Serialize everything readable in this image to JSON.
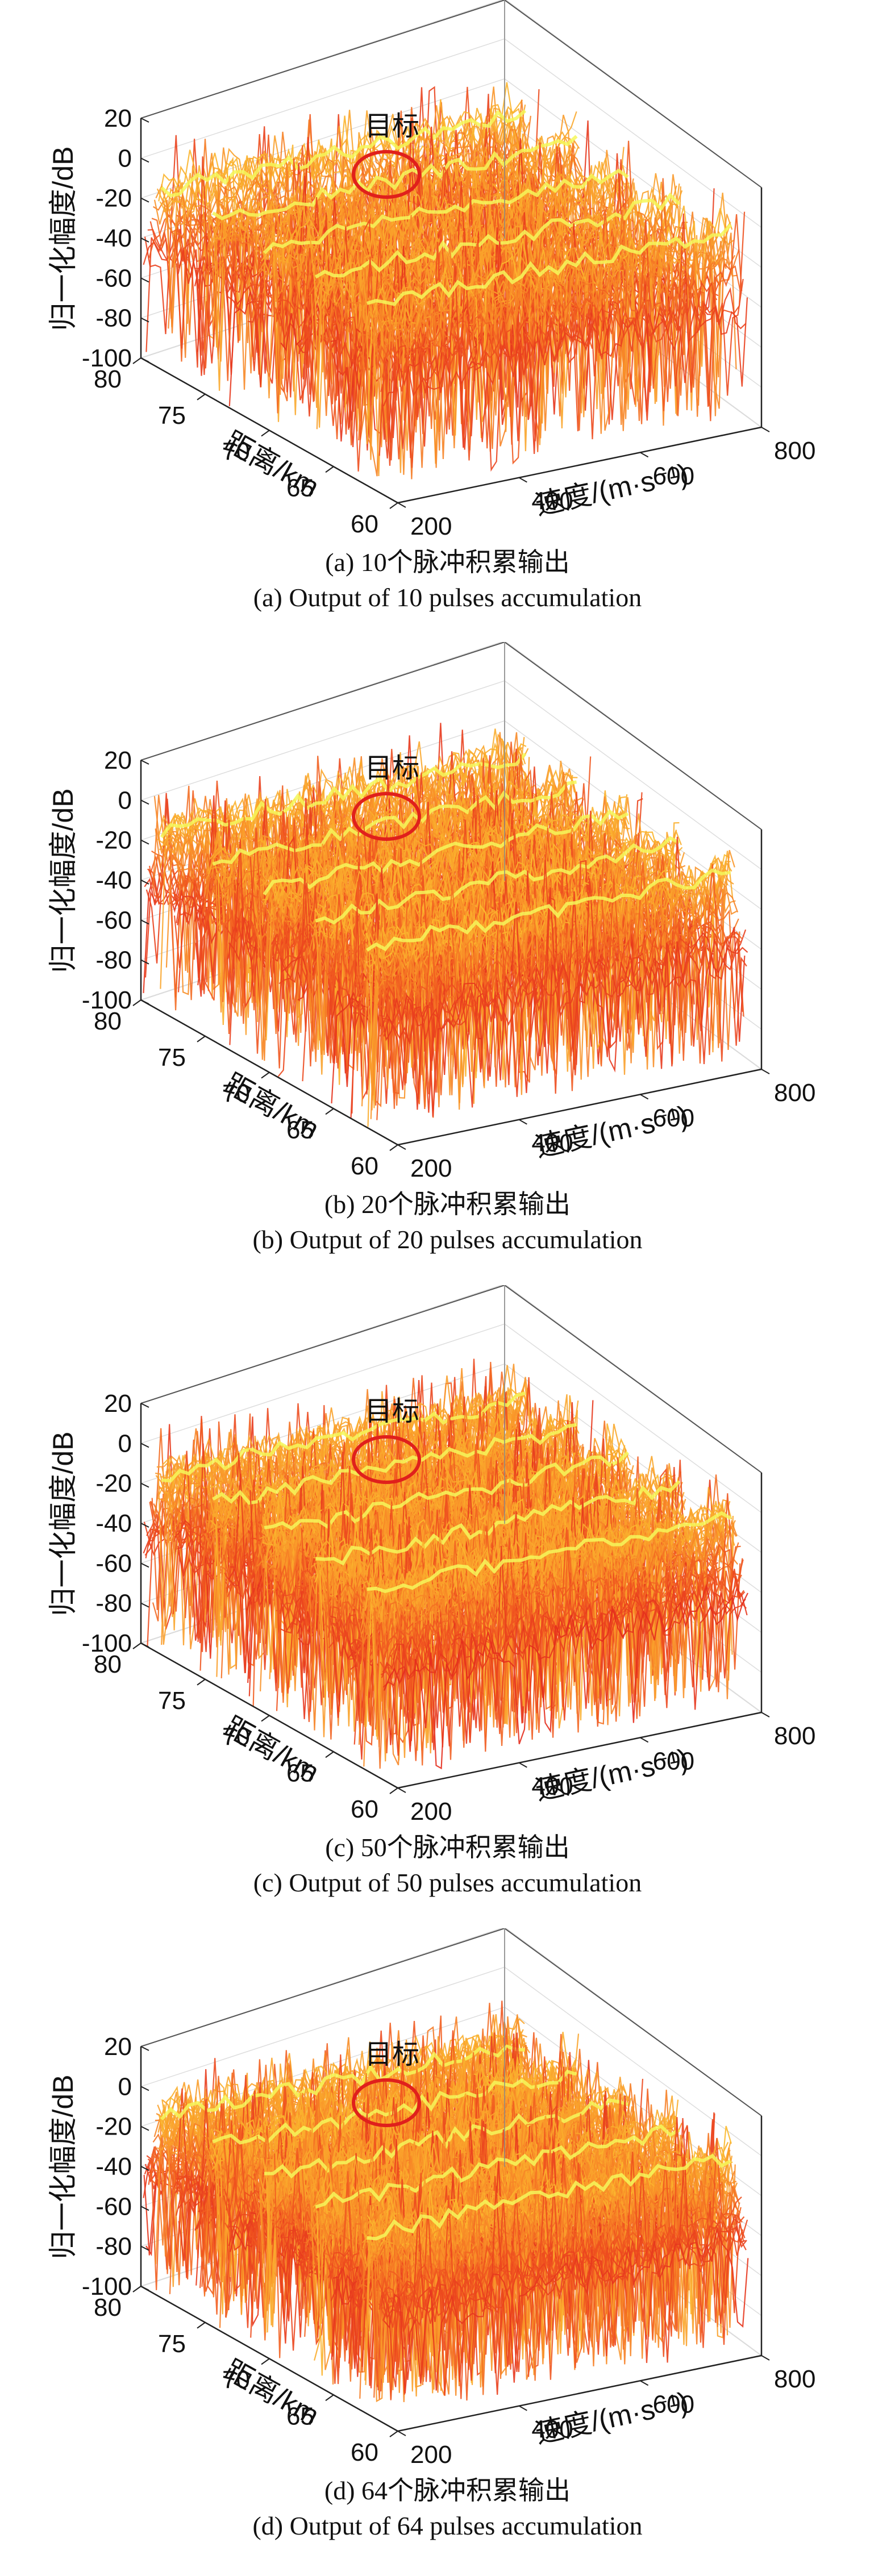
{
  "chart_data": [
    {
      "type": "surface",
      "panel_label": "(a)",
      "caption_cn": "(a) 10个脉冲积累输出",
      "caption_en": "(a) Output of 10 pulses accumulation",
      "annotation": "目标",
      "zlabel": "归一化幅度/dB",
      "xlabel": "距离/km",
      "ylabel": "速度/(m·s⁻¹)",
      "zlim": [
        -100,
        20
      ],
      "xlim": [
        60,
        80
      ],
      "ylim": [
        200,
        800
      ],
      "z_ticks": [
        "20",
        "0",
        "-20",
        "-40",
        "-60",
        "-80",
        "-100"
      ],
      "x_ticks": [
        "80",
        "75",
        "70",
        "65",
        "60"
      ],
      "y_ticks": [
        "200",
        "400",
        "600",
        "800"
      ],
      "grid": true,
      "colormap": [
        "#e0201c",
        "#f15a20",
        "#f99a2a",
        "#fdd431",
        "#f4f75a"
      ],
      "ridge_count": 5,
      "ridge_peak_db": 0,
      "noise_floor_db": -40,
      "deep_null_db": -100
    },
    {
      "type": "surface",
      "panel_label": "(b)",
      "caption_cn": "(b) 20个脉冲积累输出",
      "caption_en": "(b) Output of 20 pulses accumulation",
      "annotation": "目标",
      "zlabel": "归一化幅度/dB",
      "xlabel": "距离/km",
      "ylabel": "速度/(m·s⁻¹)",
      "zlim": [
        -100,
        20
      ],
      "xlim": [
        60,
        80
      ],
      "ylim": [
        200,
        800
      ],
      "z_ticks": [
        "20",
        "0",
        "-20",
        "-40",
        "-60",
        "-80",
        "-100"
      ],
      "x_ticks": [
        "80",
        "75",
        "70",
        "65",
        "60"
      ],
      "y_ticks": [
        "200",
        "400",
        "600",
        "800"
      ],
      "grid": true,
      "colormap": [
        "#e0201c",
        "#f15a20",
        "#f99a2a",
        "#fdd431",
        "#f4f75a"
      ],
      "ridge_count": 5,
      "ridge_peak_db": 0,
      "noise_floor_db": -40,
      "deep_null_db": -100
    },
    {
      "type": "surface",
      "panel_label": "(c)",
      "caption_cn": "(c) 50个脉冲积累输出",
      "caption_en": "(c) Output of 50 pulses accumulation",
      "annotation": "目标",
      "zlabel": "归一化幅度/dB",
      "xlabel": "距离/km",
      "ylabel": "速度/(m·s⁻¹)",
      "zlim": [
        -100,
        20
      ],
      "xlim": [
        60,
        80
      ],
      "ylim": [
        200,
        800
      ],
      "z_ticks": [
        "20",
        "0",
        "-20",
        "-40",
        "-60",
        "-80",
        "-100"
      ],
      "x_ticks": [
        "80",
        "75",
        "70",
        "65",
        "60"
      ],
      "y_ticks": [
        "200",
        "400",
        "600",
        "800"
      ],
      "grid": true,
      "colormap": [
        "#e0201c",
        "#f15a20",
        "#f99a2a",
        "#fdd431",
        "#f4f75a"
      ],
      "ridge_count": 5,
      "ridge_peak_db": 0,
      "noise_floor_db": -40,
      "deep_null_db": -100
    },
    {
      "type": "surface",
      "panel_label": "(d)",
      "caption_cn": "(d) 64个脉冲积累输出",
      "caption_en": "(d) Output of 64 pulses accumulation",
      "annotation": "目标",
      "zlabel": "归一化幅度/dB",
      "xlabel": "距离/km",
      "ylabel": "速度/(m·s⁻¹)",
      "zlim": [
        -100,
        20
      ],
      "xlim": [
        60,
        80
      ],
      "ylim": [
        200,
        800
      ],
      "z_ticks": [
        "20",
        "0",
        "-20",
        "-40",
        "-60",
        "-80",
        "-100"
      ],
      "x_ticks": [
        "80",
        "75",
        "70",
        "65",
        "60"
      ],
      "y_ticks": [
        "200",
        "400",
        "600",
        "800"
      ],
      "grid": true,
      "colormap": [
        "#e0201c",
        "#f15a20",
        "#f99a2a",
        "#fdd431",
        "#f4f75a"
      ],
      "ridge_count": 5,
      "ridge_peak_db": 0,
      "noise_floor_db": -40,
      "deep_null_db": -100
    }
  ],
  "target_marker_color": "#e0201c"
}
